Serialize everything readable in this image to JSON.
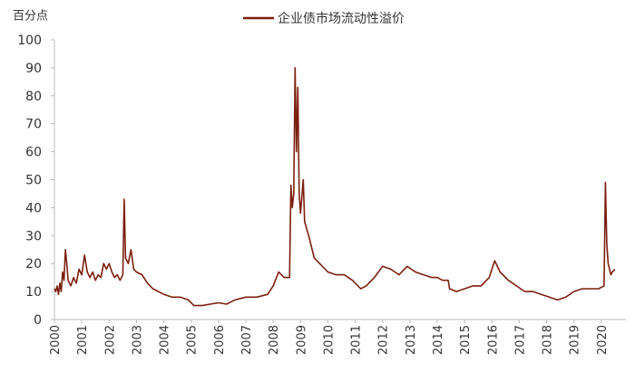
{
  "chart_data": {
    "type": "line",
    "y_label": "百分点",
    "x": [
      2000.0,
      2000.05,
      2000.1,
      2000.15,
      2000.2,
      2000.25,
      2000.3,
      2000.35,
      2000.4,
      2000.45,
      2000.5,
      2000.6,
      2000.7,
      2000.8,
      2000.9,
      2001.0,
      2001.1,
      2001.2,
      2001.3,
      2001.4,
      2001.5,
      2001.6,
      2001.7,
      2001.8,
      2001.9,
      2002.0,
      2002.1,
      2002.2,
      2002.3,
      2002.4,
      2002.5,
      2002.55,
      2002.6,
      2002.7,
      2002.8,
      2002.9,
      2003.0,
      2003.2,
      2003.4,
      2003.6,
      2003.8,
      2004.0,
      2004.3,
      2004.6,
      2004.9,
      2005.1,
      2005.4,
      2005.7,
      2006.0,
      2006.3,
      2006.6,
      2007.0,
      2007.4,
      2007.8,
      2008.0,
      2008.2,
      2008.4,
      2008.6,
      2008.65,
      2008.7,
      2008.75,
      2008.8,
      2008.85,
      2008.9,
      2008.95,
      2009.0,
      2009.1,
      2009.15,
      2009.3,
      2009.5,
      2009.7,
      2010.0,
      2010.3,
      2010.6,
      2010.9,
      2011.2,
      2011.4,
      2011.7,
      2012.0,
      2012.3,
      2012.6,
      2012.9,
      2013.2,
      2013.5,
      2013.8,
      2014.0,
      2014.2,
      2014.4,
      2014.45,
      2014.7,
      2015.0,
      2015.3,
      2015.6,
      2015.9,
      2016.1,
      2016.3,
      2016.6,
      2016.9,
      2017.2,
      2017.5,
      2017.8,
      2018.1,
      2018.4,
      2018.7,
      2019.0,
      2019.3,
      2019.6,
      2019.9,
      2020.1,
      2020.15,
      2020.2,
      2020.25,
      2020.35,
      2020.4,
      2020.5
    ],
    "series": [
      {
        "name": "企业债市场流动性溢价",
        "color": "#7b1f0e",
        "values": [
          11,
          10,
          12,
          9,
          13,
          10,
          17,
          14,
          25,
          20,
          14,
          12,
          15,
          13,
          18,
          16,
          23,
          17,
          15,
          17,
          14,
          16,
          15,
          20,
          18,
          20,
          17,
          15,
          16,
          14,
          16,
          43,
          22,
          20,
          25,
          18,
          17,
          16,
          13,
          11,
          10,
          9,
          8,
          8,
          7,
          5,
          5,
          5.5,
          6,
          5.5,
          7,
          8,
          8,
          9,
          12,
          17,
          15,
          15,
          48,
          40,
          45,
          90,
          60,
          83,
          45,
          38,
          50,
          35,
          30,
          22,
          20,
          17,
          16,
          16,
          14,
          11,
          12,
          15,
          19,
          18,
          16,
          19,
          17,
          16,
          15,
          15,
          14,
          14,
          11,
          10,
          11,
          12,
          12,
          15,
          21,
          17,
          14,
          12,
          10,
          10,
          9,
          8,
          7,
          8,
          10,
          11,
          11,
          11,
          12,
          49,
          27,
          20,
          16,
          17,
          18
        ]
      }
    ],
    "xlim": [
      2000,
      2020.9
    ],
    "xticks": [
      2000,
      2001,
      2002,
      2003,
      2004,
      2005,
      2006,
      2007,
      2008,
      2009,
      2010,
      2011,
      2012,
      2013,
      2014,
      2015,
      2016,
      2017,
      2018,
      2019,
      2020
    ],
    "ylim": [
      0,
      100
    ],
    "yticks": [
      0,
      10,
      20,
      30,
      40,
      50,
      60,
      70,
      80,
      90,
      100
    ]
  }
}
